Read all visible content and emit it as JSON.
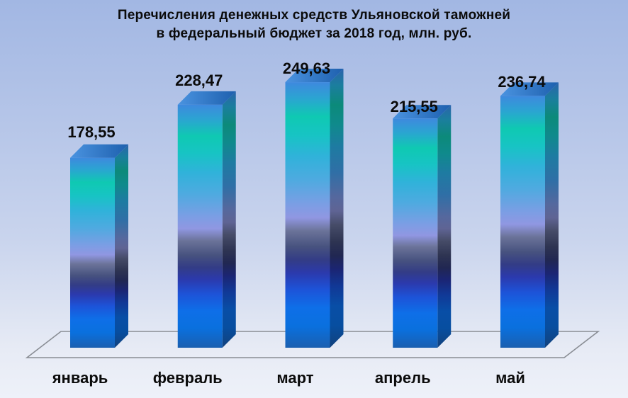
{
  "chart_data": {
    "type": "bar",
    "variant": "3d-column",
    "title": "Перечисления денежных средств Ульяновской таможней в федеральный бюджет за 2018 год, млн. руб.",
    "title_lines": [
      "Перечисления денежных средств Ульяновской таможней",
      "в федеральный бюджет за 2018 год, млн. руб."
    ],
    "unit": "млн. руб.",
    "categories": [
      "январь",
      "февраль",
      "март",
      "апрель",
      "май"
    ],
    "values": [
      178.55,
      228.47,
      249.63,
      215.55,
      236.74
    ],
    "value_labels": [
      "178,55",
      "228,47",
      "249,63",
      "215,55",
      "236,74"
    ],
    "ylim": [
      0,
      260
    ],
    "grid": false,
    "legend": "none",
    "axes_visible": false
  },
  "colors": {
    "background_gradient": [
      "#A2B7E3",
      "#B5C5E8",
      "#C9D4ED",
      "#E7EBF5",
      "#EEF1F9"
    ],
    "text": "#0B0B0B",
    "floor_stroke": "#898D94",
    "bar_front_gradient": [
      {
        "o": 0.0,
        "c": "#3E89DE"
      },
      {
        "o": 0.06,
        "c": "#2BA4D2"
      },
      {
        "o": 0.13,
        "c": "#0FC9B2"
      },
      {
        "o": 0.2,
        "c": "#17C4C4"
      },
      {
        "o": 0.28,
        "c": "#30B2DA"
      },
      {
        "o": 0.37,
        "c": "#4FAAE0"
      },
      {
        "o": 0.46,
        "c": "#7B9EE4"
      },
      {
        "o": 0.51,
        "c": "#9097E2"
      },
      {
        "o": 0.56,
        "c": "#6B7399"
      },
      {
        "o": 0.62,
        "c": "#47527F"
      },
      {
        "o": 0.67,
        "c": "#333C86"
      },
      {
        "o": 0.72,
        "c": "#2B3AAE"
      },
      {
        "o": 0.78,
        "c": "#1D53D8"
      },
      {
        "o": 0.85,
        "c": "#0E6FE8"
      },
      {
        "o": 0.92,
        "c": "#0A70DE"
      },
      {
        "o": 1.0,
        "c": "#1A5FB0"
      }
    ],
    "bar_side_gradient": [
      {
        "o": 0.0,
        "c": "#2B63AC"
      },
      {
        "o": 0.06,
        "c": "#1B7E9E"
      },
      {
        "o": 0.13,
        "c": "#0C8A7A"
      },
      {
        "o": 0.2,
        "c": "#0F8A8C"
      },
      {
        "o": 0.28,
        "c": "#1E7BA2"
      },
      {
        "o": 0.37,
        "c": "#2F6FA6"
      },
      {
        "o": 0.46,
        "c": "#55689E"
      },
      {
        "o": 0.51,
        "c": "#5F6494"
      },
      {
        "o": 0.56,
        "c": "#464C68"
      },
      {
        "o": 0.62,
        "c": "#2E3452"
      },
      {
        "o": 0.67,
        "c": "#212752"
      },
      {
        "o": 0.72,
        "c": "#1B2574"
      },
      {
        "o": 0.78,
        "c": "#113896"
      },
      {
        "o": 0.85,
        "c": "#084EA6"
      },
      {
        "o": 0.92,
        "c": "#074EA0"
      },
      {
        "o": 1.0,
        "c": "#12417C"
      }
    ],
    "bar_top_gradient": [
      {
        "o": 0.0,
        "c": "#4A93E0"
      },
      {
        "o": 1.0,
        "c": "#1E60AE"
      }
    ]
  }
}
